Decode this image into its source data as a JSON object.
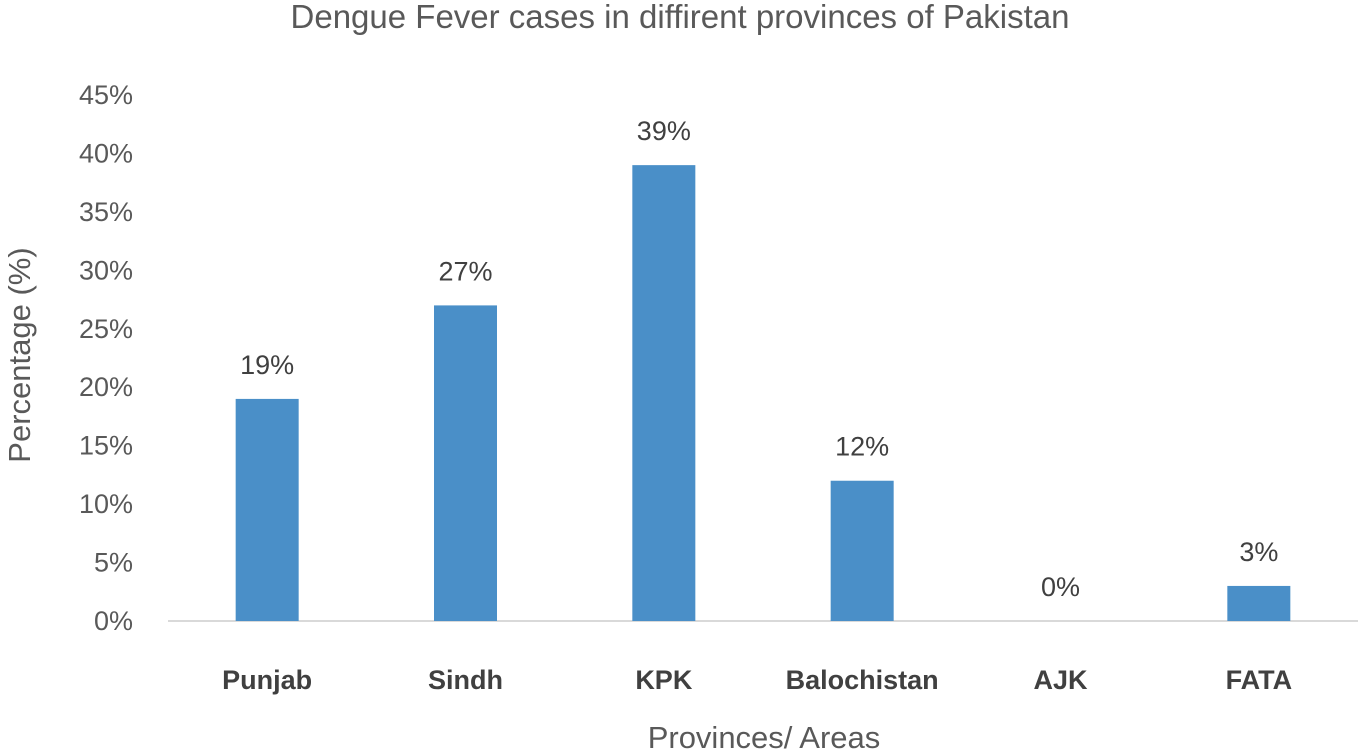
{
  "chart_data": {
    "type": "bar",
    "title": "Dengue Fever cases in diffirent provinces of Pakistan",
    "xlabel": "Provinces/ Areas",
    "ylabel": "Percentage (%)",
    "categories": [
      "Punjab",
      "Sindh",
      "KPK",
      "Balochistan",
      "AJK",
      "FATA"
    ],
    "values": [
      19,
      27,
      39,
      12,
      0,
      3
    ],
    "data_labels": [
      "19%",
      "27%",
      "39%",
      "12%",
      "0%",
      "3%"
    ],
    "ylim": [
      0,
      45
    ],
    "yticks": [
      "0%",
      "5%",
      "10%",
      "15%",
      "20%",
      "25%",
      "30%",
      "35%",
      "40%",
      "45%"
    ],
    "ytick_values": [
      0,
      5,
      10,
      15,
      20,
      25,
      30,
      35,
      40,
      45
    ],
    "grid": false,
    "legend": "none",
    "bar_color": "#4a8fc8"
  }
}
